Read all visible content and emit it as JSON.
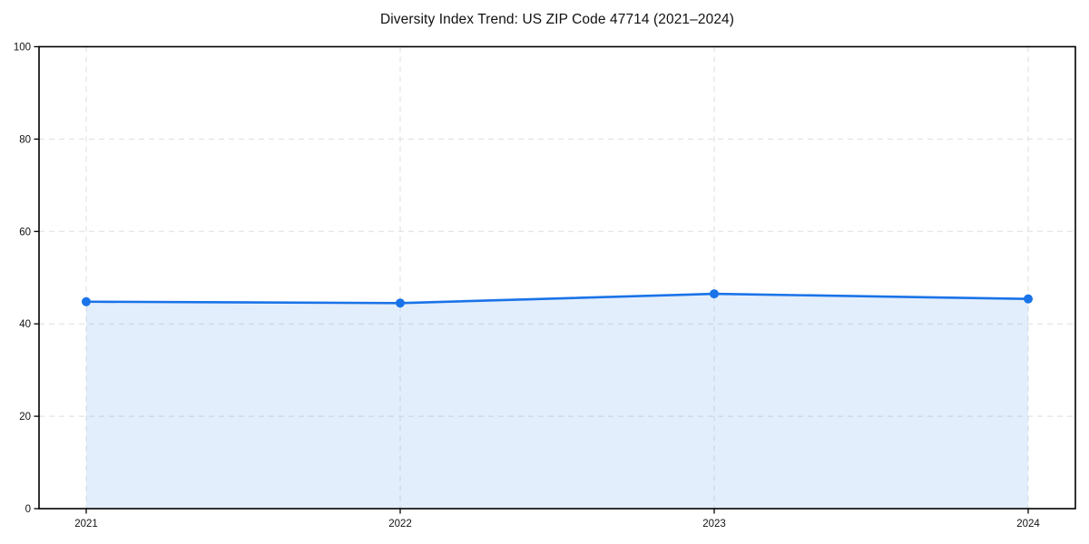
{
  "chart_data": {
    "type": "line",
    "title": "Diversity Index Trend: US ZIP Code 47714 (2021–2024)",
    "x": [
      "2021",
      "2022",
      "2023",
      "2024"
    ],
    "series": [
      {
        "name": "Diversity Index",
        "values": [
          44.8,
          44.5,
          46.5,
          45.4
        ]
      }
    ],
    "xlabel": "",
    "ylabel": "",
    "ylim": [
      0,
      100
    ],
    "yticks": [
      0,
      20,
      40,
      60,
      80,
      100
    ],
    "grid": true,
    "grid_style": "dashed",
    "legend": false,
    "area_fill": true,
    "marker": "circle",
    "colors": {
      "line": "#1a73e8",
      "marker": "#1a73e8",
      "fill": "rgba(26,115,232,0.12)",
      "grid": "#dedede",
      "axis": "#000000",
      "tick_text": "#111111",
      "background": "#ffffff"
    }
  }
}
